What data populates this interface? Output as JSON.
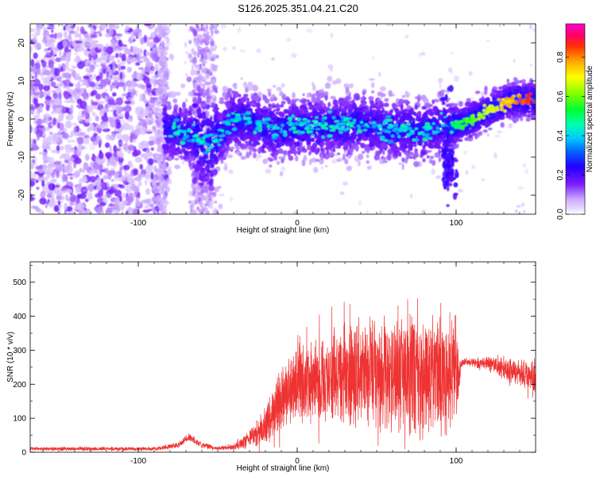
{
  "title": "S126.2025.351.04.21.C20",
  "chart_data": [
    {
      "type": "heatmap",
      "xlabel": "Height of straight line (km)",
      "ylabel": "Frequency (Hz)",
      "xlim": [
        -168,
        150
      ],
      "ylim": [
        -25,
        25
      ],
      "xticks": [
        -100,
        0,
        100
      ],
      "yticks": [
        -20,
        -10,
        0,
        10,
        20
      ],
      "colorbar": {
        "label": "Normalized spectral amplitude",
        "range": [
          0,
          0.97
        ],
        "ticks": [
          0.0,
          0.2,
          0.4,
          0.6,
          0.8
        ]
      },
      "features": {
        "noise_region_x": [
          -168,
          -82
        ],
        "central_track": [
          [
            -82,
            -3
          ],
          [
            -75,
            -3
          ],
          [
            -70,
            -4
          ],
          [
            -62,
            -5
          ],
          [
            -55,
            -7
          ],
          [
            -50,
            -5
          ],
          [
            -40,
            0
          ],
          [
            -30,
            -1
          ],
          [
            -15,
            -3
          ],
          [
            0,
            -2
          ],
          [
            20,
            -2
          ],
          [
            40,
            -1
          ],
          [
            60,
            -3
          ],
          [
            80,
            -3
          ],
          [
            96,
            -2
          ]
        ],
        "strong_track": [
          [
            97,
            -2
          ],
          [
            105,
            -1
          ],
          [
            115,
            1
          ],
          [
            125,
            3
          ],
          [
            135,
            5
          ],
          [
            150,
            5
          ]
        ]
      }
    },
    {
      "type": "line",
      "xlabel": "Height of straight line (km)",
      "ylabel": "SNR (10 * v/v)",
      "xlim": [
        -168,
        150
      ],
      "ylim": [
        0,
        560
      ],
      "xticks": [
        -100,
        0,
        100
      ],
      "yticks": [
        0,
        100,
        200,
        300,
        400,
        500
      ],
      "color": "#ee3333",
      "envelope": {
        "x": [
          -168,
          -90,
          -75,
          -68,
          -60,
          -50,
          -40,
          -30,
          -20,
          -10,
          0,
          10,
          20,
          30,
          40,
          50,
          60,
          70,
          80,
          90,
          100,
          102,
          104,
          110,
          120,
          130,
          140,
          150
        ],
        "mid": [
          10,
          10,
          20,
          45,
          20,
          12,
          15,
          40,
          80,
          150,
          200,
          210,
          220,
          230,
          240,
          240,
          230,
          240,
          220,
          230,
          230,
          230,
          265,
          265,
          260,
          245,
          230,
          220
        ],
        "amp": [
          6,
          6,
          10,
          15,
          10,
          6,
          10,
          30,
          60,
          110,
          130,
          140,
          150,
          170,
          190,
          190,
          180,
          210,
          200,
          200,
          190,
          40,
          12,
          15,
          25,
          35,
          45,
          60
        ]
      }
    }
  ]
}
